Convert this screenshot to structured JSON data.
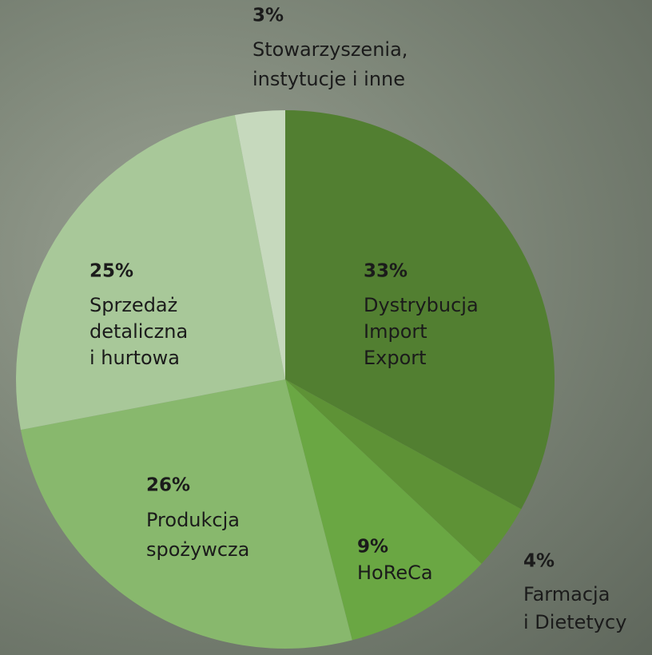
{
  "chart_data": {
    "type": "pie",
    "categories": [
      [
        "Dystrybucja",
        "Import",
        "Export"
      ],
      [
        "Farmacja",
        "i Dietetycy"
      ],
      [
        "HoReCa"
      ],
      [
        "Produkcja",
        "spożywcza"
      ],
      [
        "Sprzedaż",
        "detaliczna",
        "i hurtowa"
      ],
      [
        "Stowarzyszenia,",
        "instytucje i inne"
      ]
    ],
    "values": [
      33,
      4,
      9,
      26,
      25,
      3
    ],
    "value_labels": [
      "33%",
      "4%",
      "9%",
      "26%",
      "25%",
      "3%"
    ],
    "colors": [
      "#527f31",
      "#5e9236",
      "#6aa743",
      "#88b86d",
      "#a8c899",
      "#c6d9bd"
    ]
  }
}
